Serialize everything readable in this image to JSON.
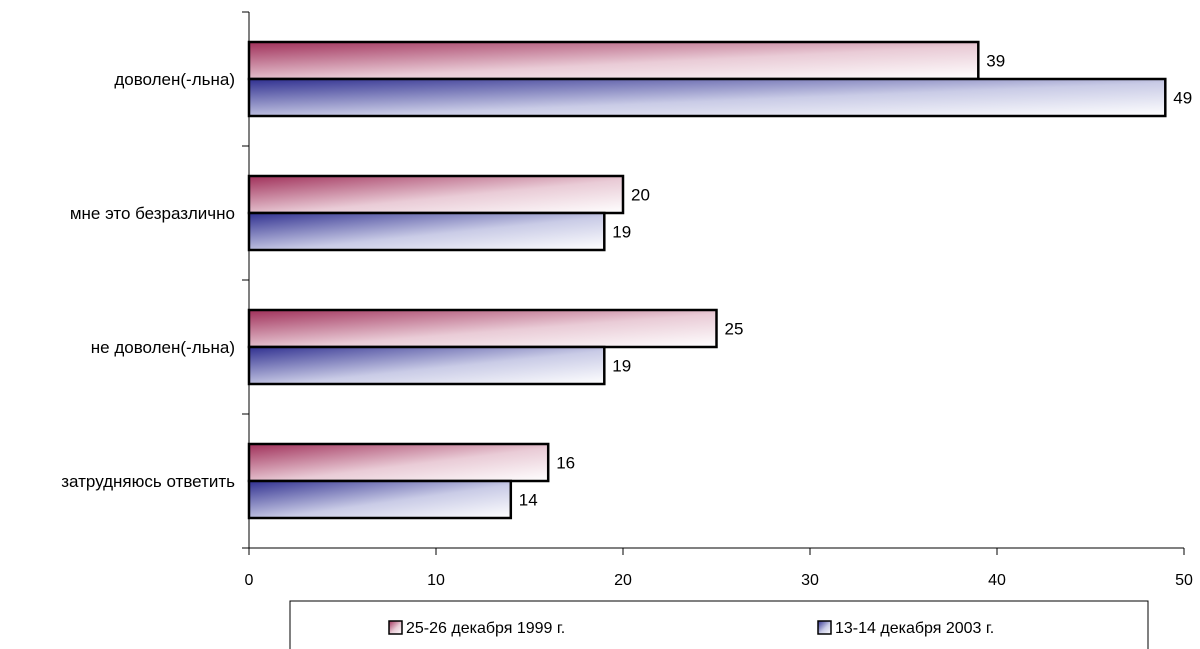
{
  "chart_data": {
    "type": "bar",
    "orientation": "horizontal",
    "categories": [
      "доволен(-льна)",
      "мне это безразлично",
      "не доволен(-льна)",
      "затрудняюсь ответить"
    ],
    "series": [
      {
        "name": "25-26 декабря 1999 г.",
        "values": [
          39,
          20,
          25,
          16
        ],
        "color": "#a0305a"
      },
      {
        "name": "13-14 декабря 2003 г.",
        "values": [
          49,
          19,
          19,
          14
        ],
        "color": "#303090"
      }
    ],
    "xlim": [
      0,
      50
    ],
    "xticks": [
      "0",
      "10",
      "20",
      "30",
      "40",
      "50"
    ],
    "grid": false,
    "legend_position": "bottom"
  }
}
